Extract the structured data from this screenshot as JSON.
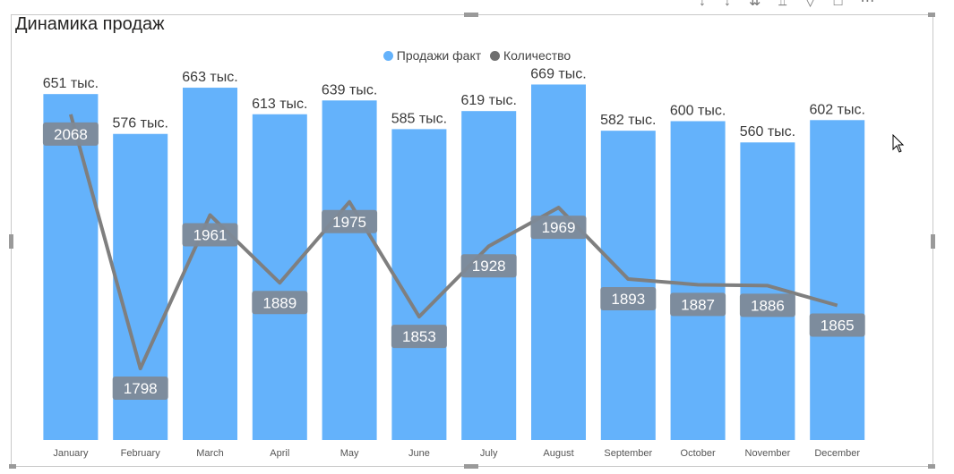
{
  "title": "Динамика продаж",
  "colors": {
    "bar": "#64b2fb",
    "line": "#7f7f7f",
    "label_bg": "#7e8a98",
    "text": "#3a3a3a"
  },
  "chart_data": {
    "type": "bar",
    "categories": [
      "January",
      "February",
      "March",
      "April",
      "May",
      "June",
      "July",
      "August",
      "September",
      "October",
      "November",
      "December"
    ],
    "series": [
      {
        "name": "Продажи факт",
        "type": "bar",
        "values": [
          651,
          576,
          663,
          613,
          639,
          585,
          619,
          669,
          582,
          600,
          560,
          602
        ],
        "labels": [
          "651 тыс.",
          "576 тыс.",
          "663 тыс.",
          "613 тыс.",
          "639 тыс.",
          "585 тыс.",
          "619 тыс.",
          "669 тыс.",
          "582 тыс.",
          "600 тыс.",
          "560 тыс.",
          "602 тыс."
        ]
      },
      {
        "name": "Количество",
        "type": "line",
        "values": [
          2068,
          1798,
          1961,
          1889,
          1975,
          1853,
          1928,
          1969,
          1893,
          1887,
          1886,
          1865
        ]
      }
    ],
    "bar_ylim": [
      0,
      690
    ],
    "line_ylim": [
      1760,
      2085
    ],
    "legend_position": "top-center",
    "grid": false
  },
  "toolbar_icons": [
    "pin-icon",
    "drill-down-icon",
    "expand-all-icon",
    "expand-next-icon",
    "filter-icon",
    "focus-mode-icon",
    "more-options-icon"
  ]
}
